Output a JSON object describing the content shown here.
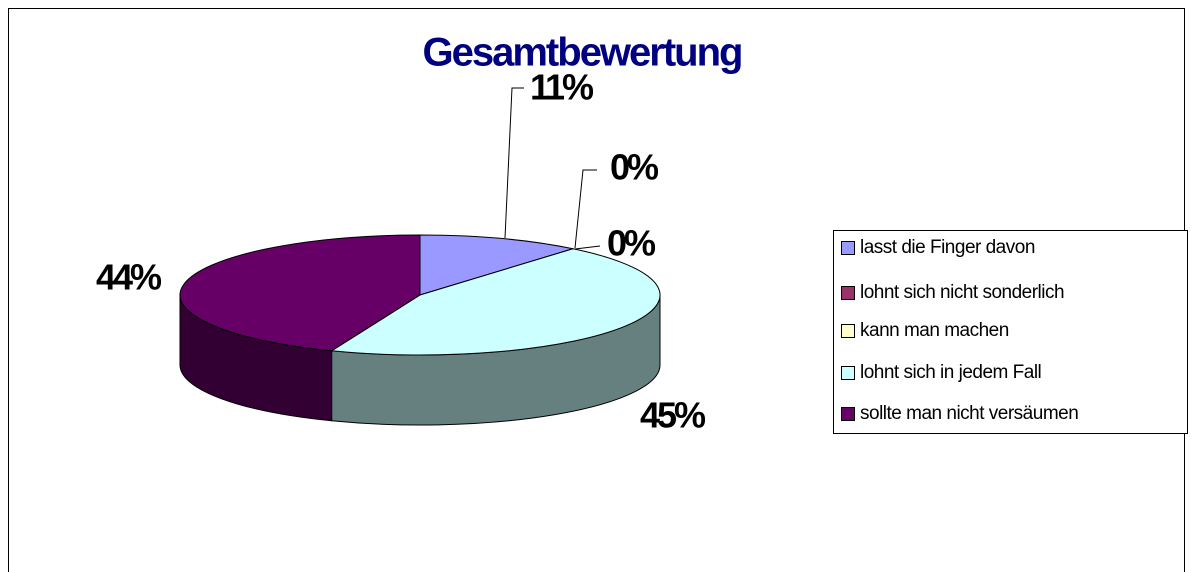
{
  "chart_data": {
    "type": "pie",
    "title": "Gesamtbewertung",
    "categories": [
      "lasst die Finger davon",
      "lohnt sich nicht sonderlich",
      "kann man machen",
      "lohnt sich in jedem Fall",
      "sollte man nicht versäumen"
    ],
    "values": [
      11,
      0,
      0,
      45,
      44
    ],
    "value_labels": [
      "11%",
      "0%",
      "0%",
      "45%",
      "44%"
    ],
    "colors": [
      "#9999ff",
      "#993366",
      "#ffffcc",
      "#ccffff",
      "#660066"
    ],
    "legend": "right"
  }
}
